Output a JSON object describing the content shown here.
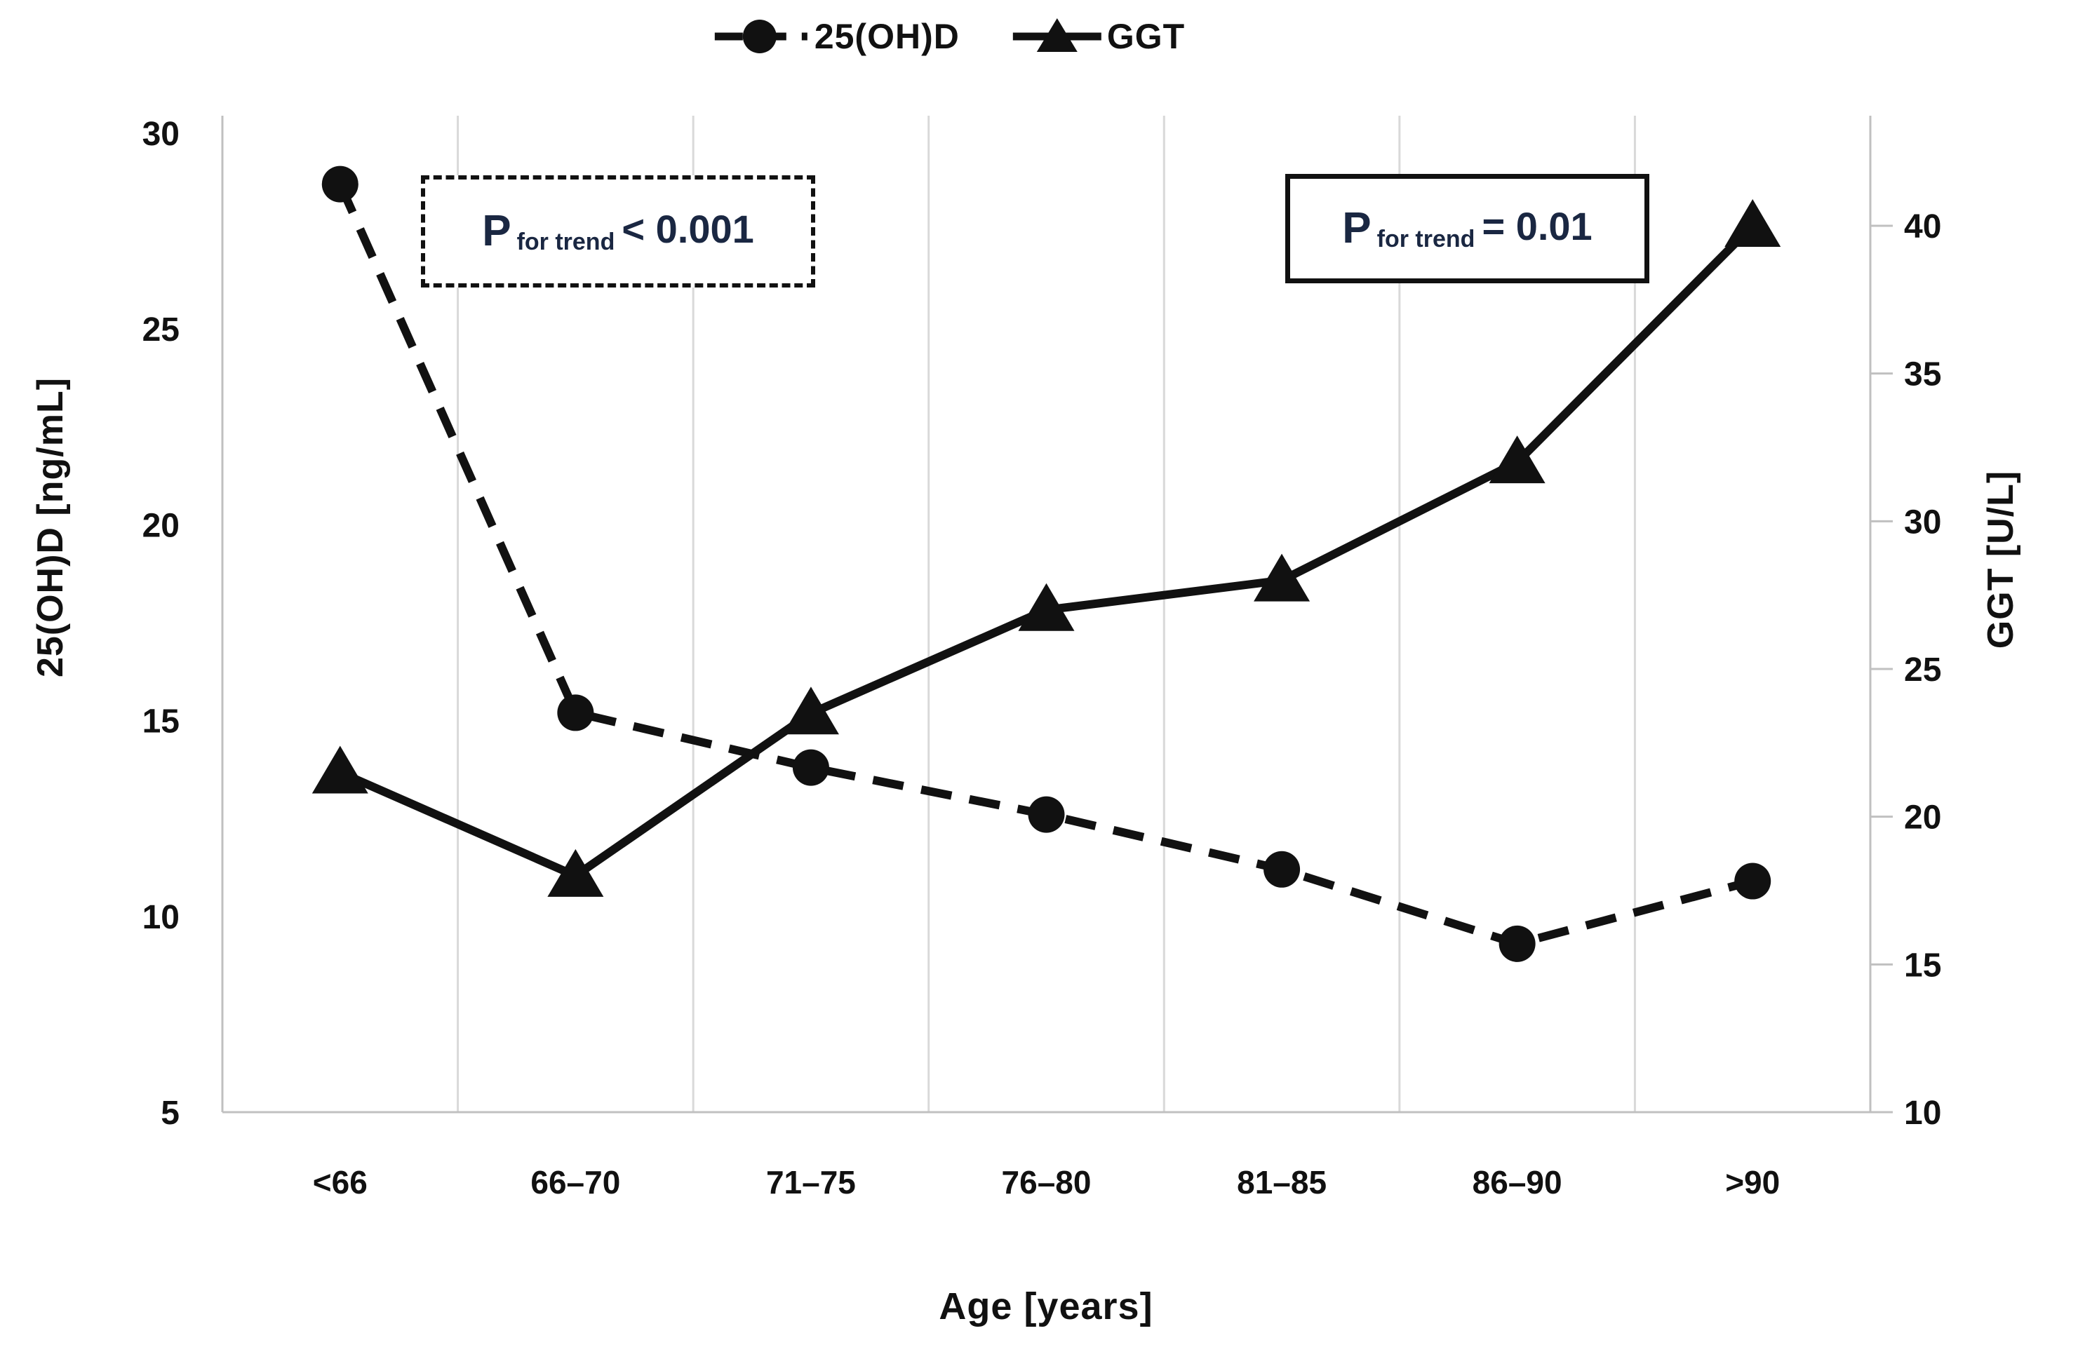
{
  "figure": {
    "background": "#ffffff"
  },
  "legend": {
    "items": [
      {
        "label": "25(OH)D",
        "marker": "circle-icon",
        "line_style": "dashed"
      },
      {
        "label": "GGT",
        "marker": "triangle-icon",
        "line_style": "solid"
      }
    ]
  },
  "annotations": [
    {
      "prefix": "P",
      "subscript": "for trend",
      "value": "< 0.001",
      "box_style": "dashed"
    },
    {
      "prefix": "P",
      "subscript": "for trend",
      "value": "= 0.01",
      "box_style": "solid"
    }
  ],
  "chart_data": {
    "type": "line",
    "categories": [
      "<66",
      "66–70",
      "71–75",
      "76–80",
      "81–85",
      "86–90",
      ">90"
    ],
    "series": [
      {
        "name": "25(OH)D",
        "axis": "left",
        "values": [
          28.7,
          15.2,
          13.8,
          12.6,
          11.2,
          9.3,
          10.9
        ],
        "marker": "circle",
        "line_style": "dashed"
      },
      {
        "name": "GGT",
        "axis": "right",
        "values": [
          21.5,
          18,
          23.5,
          27,
          28,
          32,
          40
        ],
        "marker": "triangle",
        "line_style": "solid"
      }
    ],
    "left_axis": {
      "label": "25(OH)D [ng/mL]",
      "ticks": [
        30,
        25,
        20,
        15,
        10,
        5
      ],
      "range": [
        5,
        30
      ]
    },
    "right_axis": {
      "label": "GGT [U/L]",
      "ticks": [
        40,
        35,
        30,
        25,
        20,
        15,
        10
      ],
      "range": [
        10,
        40
      ]
    },
    "xlabel": "Age [years]",
    "grid": "vertical-between-categories",
    "legend_position": "top-center",
    "colors": {
      "series": "#111111",
      "grid": "#d9d9d9",
      "axis_border": "#c0c0c0",
      "text": "#111111",
      "annotation_text": "#1a2742"
    }
  }
}
